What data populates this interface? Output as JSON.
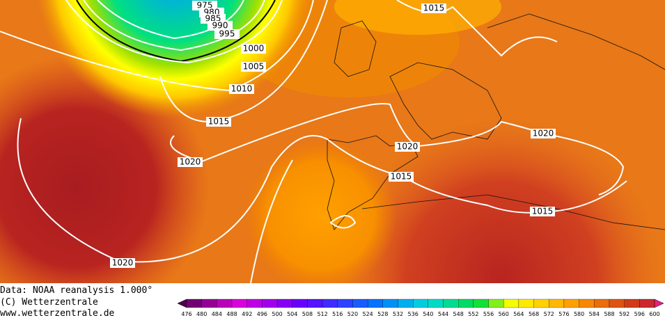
{
  "map": {
    "isobar_labels": [
      "975",
      "980",
      "985",
      "990",
      "995",
      "1000",
      "1005",
      "1010",
      "1015",
      "1020",
      "1020",
      "1015",
      "1020",
      "1015",
      "1020",
      "1015"
    ],
    "footer": {
      "source": "Data: NOAA reanalysis 1.000°",
      "copyright": "(C) Wetterzentrale",
      "url": "www.wetterzentrale.de"
    },
    "legend": {
      "labels": [
        "476",
        "480",
        "484",
        "488",
        "492",
        "496",
        "500",
        "504",
        "508",
        "512",
        "516",
        "520",
        "524",
        "528",
        "532",
        "536",
        "540",
        "544",
        "548",
        "552",
        "556",
        "560",
        "564",
        "568",
        "572",
        "576",
        "580",
        "584",
        "588",
        "592",
        "596",
        "600"
      ]
    }
  }
}
